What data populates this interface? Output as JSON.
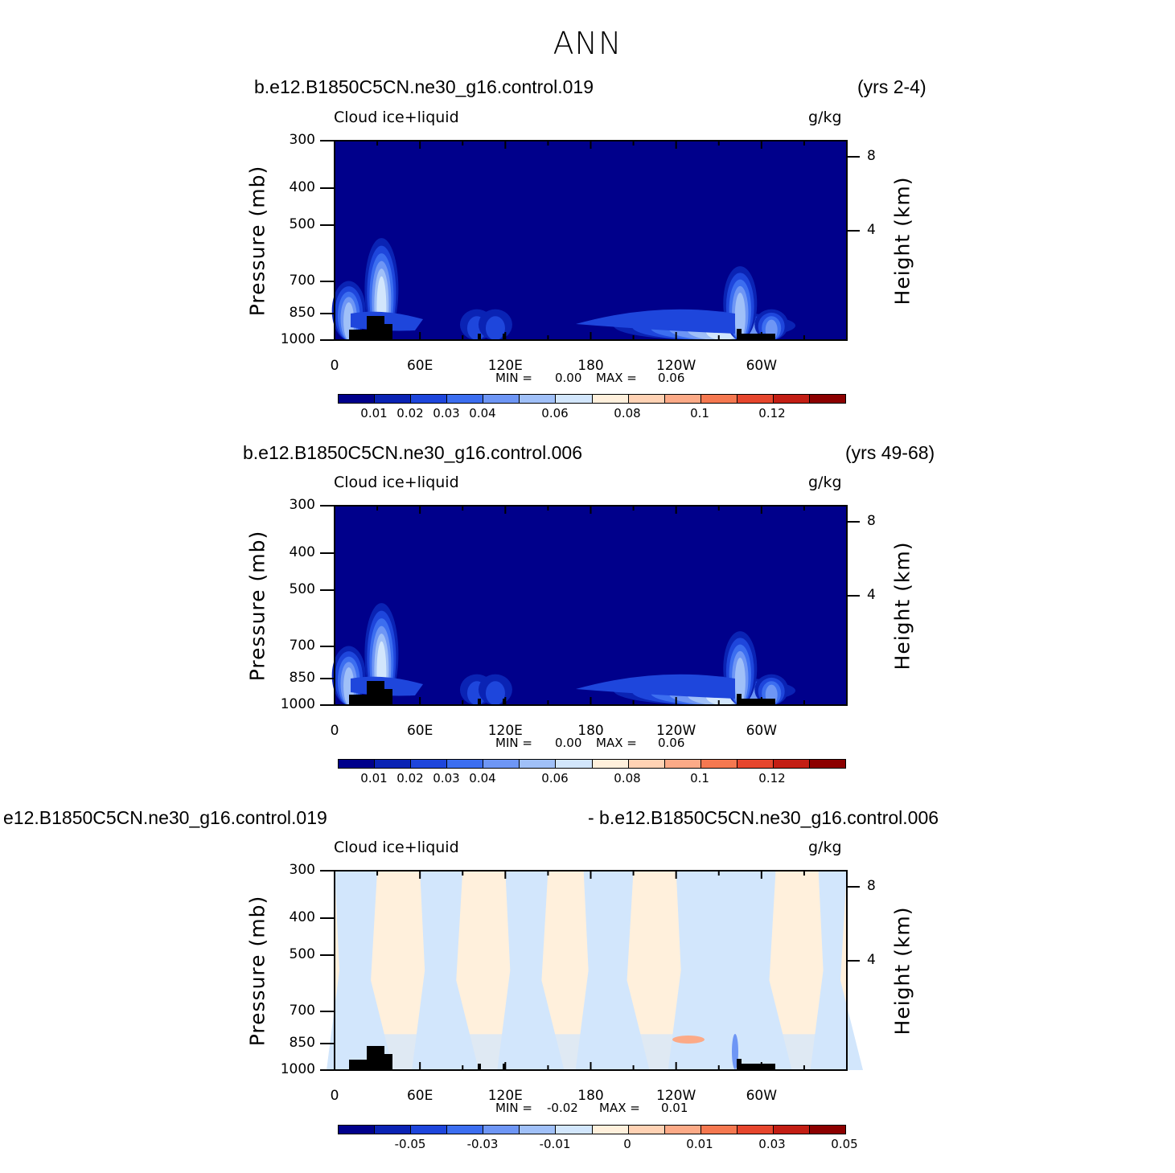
{
  "title": "ANN",
  "panels": [
    {
      "case_left": "b.e12.B1850C5CN.ne30_g16.control.019",
      "case_right": "(yrs 2-4)",
      "variable": "Cloud ice+liquid",
      "units": "g/kg",
      "ylabel_left": "Pressure (mb)",
      "ylabel_right": "Height (km)",
      "min_label": "MIN =",
      "min_value": "0.00",
      "max_label": "MAX =",
      "max_value": "0.06",
      "colorbar_labels": [
        "0.01",
        "0.02",
        "0.03",
        "0.04",
        "0.06",
        "0.08",
        "0.1",
        "0.12"
      ]
    },
    {
      "case_left": "b.e12.B1850C5CN.ne30_g16.control.006",
      "case_right": "(yrs 49-68)",
      "variable": "Cloud ice+liquid",
      "units": "g/kg",
      "ylabel_left": "Pressure (mb)",
      "ylabel_right": "Height (km)",
      "min_label": "MIN =",
      "min_value": "0.00",
      "max_label": "MAX =",
      "max_value": "0.06",
      "colorbar_labels": [
        "0.01",
        "0.02",
        "0.03",
        "0.04",
        "0.06",
        "0.08",
        "0.1",
        "0.12"
      ]
    },
    {
      "case_left": "e12.B1850C5CN.ne30_g16.control.019",
      "case_right": "- b.e12.B1850C5CN.ne30_g16.control.006",
      "variable": "Cloud ice+liquid",
      "units": "g/kg",
      "ylabel_left": "Pressure (mb)",
      "ylabel_right": "Height (km)",
      "min_label": "MIN =",
      "min_value": "-0.02",
      "max_label": "MAX =",
      "max_value": "0.01",
      "colorbar_labels": [
        "-0.05",
        "-0.03",
        "-0.01",
        "0",
        "0.01",
        "0.03",
        "0.05"
      ]
    }
  ],
  "colors": {
    "background_mean": "#00008b",
    "palette": [
      "#00008b",
      "#0a23b4",
      "#1e46dc",
      "#3c6ef0",
      "#6e96f5",
      "#a0c0f8",
      "#d2e6fc",
      "#fff0dc",
      "#ffd2b4",
      "#fcaa87",
      "#f57850",
      "#e6462d",
      "#c31e14",
      "#8c0000"
    ],
    "topography": "#000000"
  },
  "chart_data": [
    {
      "type": "heatmap",
      "title": "Cloud ice+liquid",
      "xlabel": "",
      "ylabel": "Pressure (mb)",
      "y2label": "Height (km)",
      "x_ticks": [
        "0",
        "60E",
        "120E",
        "180",
        "120W",
        "60W"
      ],
      "y_ticks": [
        300,
        400,
        500,
        700,
        850,
        1000
      ],
      "y2_ticks": [
        8,
        4
      ],
      "ylim": [
        1000,
        300
      ],
      "levels": [
        0.01,
        0.02,
        0.03,
        0.04,
        0.06,
        0.08,
        0.1,
        0.12
      ],
      "min": 0.0,
      "max": 0.06,
      "features": [
        {
          "lon": 10,
          "p_top": 700,
          "peak": 0.05
        },
        {
          "lon": 33,
          "p_top": 540,
          "peak": 0.06
        },
        {
          "lon": 100,
          "p_top": 830,
          "peak": 0.02
        },
        {
          "lon": 113,
          "p_top": 830,
          "peak": 0.02
        },
        {
          "lon": 260,
          "p_top": 840,
          "peak": 0.06
        },
        {
          "lon": 285,
          "p_top": 640,
          "peak": 0.05
        },
        {
          "lon": 307,
          "p_top": 830,
          "peak": 0.04
        }
      ]
    },
    {
      "type": "heatmap",
      "title": "Cloud ice+liquid",
      "xlabel": "",
      "ylabel": "Pressure (mb)",
      "y2label": "Height (km)",
      "x_ticks": [
        "0",
        "60E",
        "120E",
        "180",
        "120W",
        "60W"
      ],
      "y_ticks": [
        300,
        400,
        500,
        700,
        850,
        1000
      ],
      "y2_ticks": [
        8,
        4
      ],
      "ylim": [
        1000,
        300
      ],
      "levels": [
        0.01,
        0.02,
        0.03,
        0.04,
        0.06,
        0.08,
        0.1,
        0.12
      ],
      "min": 0.0,
      "max": 0.06,
      "features": [
        {
          "lon": 10,
          "p_top": 700,
          "peak": 0.05
        },
        {
          "lon": 33,
          "p_top": 540,
          "peak": 0.06
        },
        {
          "lon": 100,
          "p_top": 830,
          "peak": 0.02
        },
        {
          "lon": 113,
          "p_top": 830,
          "peak": 0.02
        },
        {
          "lon": 260,
          "p_top": 840,
          "peak": 0.06
        },
        {
          "lon": 285,
          "p_top": 640,
          "peak": 0.05
        },
        {
          "lon": 307,
          "p_top": 830,
          "peak": 0.04
        }
      ]
    },
    {
      "type": "heatmap",
      "title": "Cloud ice+liquid",
      "xlabel": "",
      "ylabel": "Pressure (mb)",
      "y2label": "Height (km)",
      "x_ticks": [
        "0",
        "60E",
        "120E",
        "180",
        "120W",
        "60W"
      ],
      "y_ticks": [
        300,
        400,
        500,
        700,
        850,
        1000
      ],
      "y2_ticks": [
        8,
        4
      ],
      "ylim": [
        1000,
        300
      ],
      "levels": [
        -0.05,
        -0.03,
        -0.01,
        0,
        0.01,
        0.03,
        0.05
      ],
      "min": -0.02,
      "max": 0.01
    }
  ]
}
